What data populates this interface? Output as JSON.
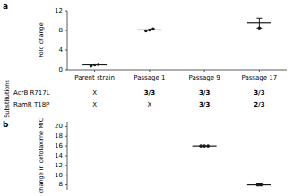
{
  "chart_data": [
    {
      "type": "dot",
      "panel_label": "a",
      "ylabel": "Fold change",
      "categories": [
        "Parent strain",
        "Passage 1",
        "Passage 9",
        "Passage 17"
      ],
      "points": [
        [
          0.8,
          1.0,
          1.1
        ],
        [
          7.9,
          8.1,
          8.3
        ],
        [],
        [
          8.5
        ]
      ],
      "means": [
        1.0,
        8.1,
        null,
        9.5
      ],
      "errorbars": [
        null,
        null,
        null,
        {
          "y": 9.5,
          "yerr": 1.0
        }
      ],
      "color": "#1a1a1a",
      "ylim": [
        0,
        12
      ],
      "yticks": [
        0,
        4,
        8,
        12
      ]
    },
    {
      "type": "table",
      "row_label": "Substitutions",
      "rows": [
        "AcrB R717L",
        "RamR T18P"
      ],
      "data": [
        [
          "X",
          "3/3",
          "3/3",
          "3/3"
        ],
        [
          "X",
          "X",
          "3/3",
          "2/3"
        ]
      ]
    },
    {
      "type": "dot",
      "panel_label": "b",
      "ylabel": "change in cefotaxime MIC",
      "categories": [
        null,
        null,
        null,
        null
      ],
      "points": [
        [],
        [],
        [
          16.0,
          16.0,
          16.0
        ],
        [
          8.0,
          8.0
        ]
      ],
      "means": [
        null,
        null,
        16.0,
        8.0
      ],
      "errorbars": [
        null,
        null,
        null,
        {
          "y": 8.0,
          "yerr": 0.2
        }
      ],
      "color": "#1a1a1a",
      "ylim": [
        7,
        21
      ],
      "yticks": [
        8,
        10,
        12,
        14,
        16,
        18,
        20
      ]
    }
  ]
}
